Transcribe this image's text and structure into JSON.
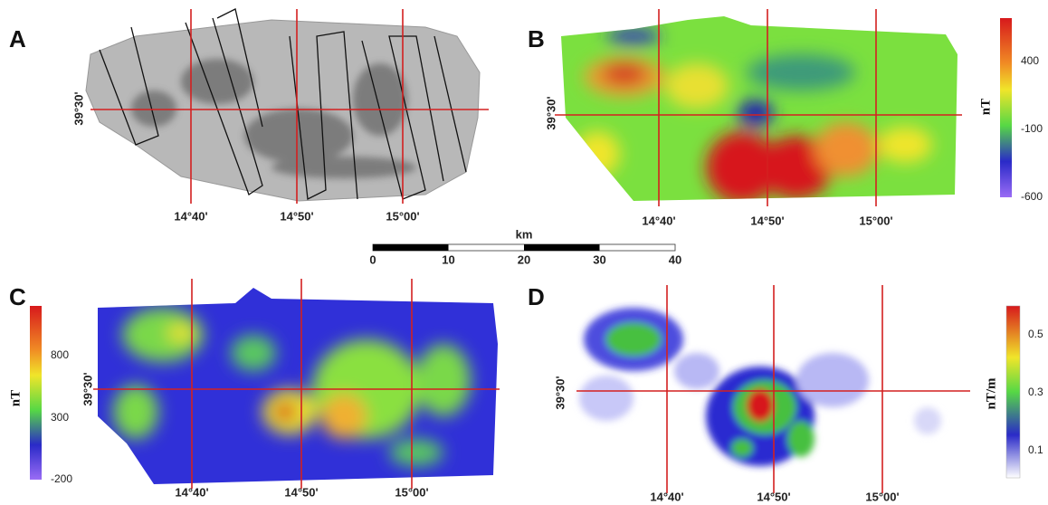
{
  "panels": [
    {
      "letter": "A",
      "lat_label": "39°30'",
      "lon_labels": [
        "14°40'",
        "14°50'",
        "15°00'"
      ]
    },
    {
      "letter": "B",
      "lat_label": "39°30'",
      "lon_labels": [
        "14°40'",
        "14°50'",
        "15°00'"
      ],
      "colorbar": {
        "unit": "nT",
        "ticks": [
          "400",
          "-100",
          "-600"
        ]
      }
    },
    {
      "letter": "C",
      "lat_label": "39°30'",
      "lon_labels": [
        "14°40'",
        "14°50'",
        "15°00'"
      ],
      "colorbar": {
        "unit": "nT",
        "ticks": [
          "800",
          "300",
          "-200"
        ]
      }
    },
    {
      "letter": "D",
      "lat_label": "39°30'",
      "lon_labels": [
        "14°40'",
        "14°50'",
        "15°00'"
      ],
      "colorbar": {
        "unit": "nT/m",
        "ticks": [
          "0.5",
          "0.3",
          "0.1"
        ]
      }
    }
  ],
  "scale_bar": {
    "unit": "km",
    "ticks": [
      "0",
      "10",
      "20",
      "30",
      "40"
    ]
  }
}
